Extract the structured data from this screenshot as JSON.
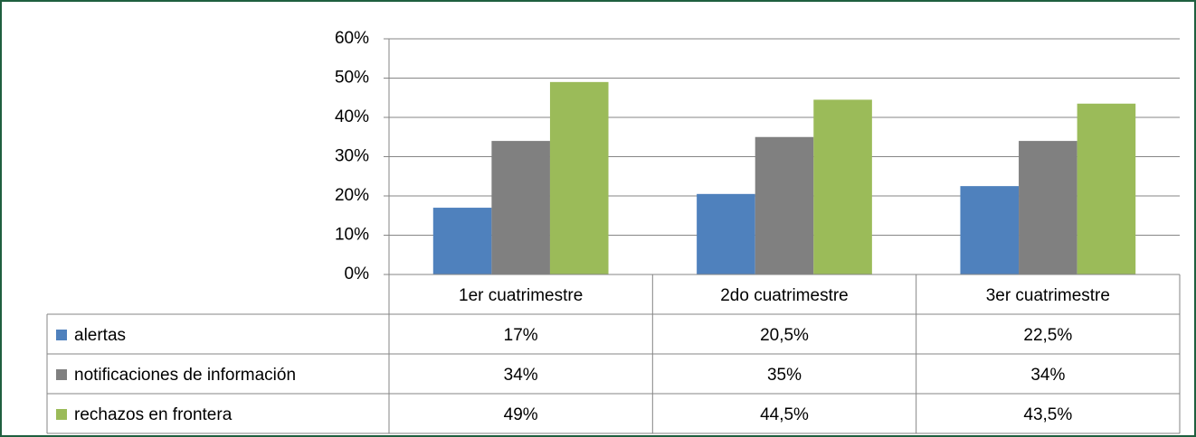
{
  "chart_data": {
    "type": "bar",
    "categories": [
      "1er cuatrimestre",
      "2do cuatrimestre",
      "3er cuatrimestre"
    ],
    "series": [
      {
        "name": "alertas",
        "color": "#4f81bd",
        "values": [
          17,
          20.5,
          22.5
        ],
        "value_labels": [
          "17%",
          "20,5%",
          "22,5%"
        ]
      },
      {
        "name": "notificaciones de información",
        "color": "#808080",
        "values": [
          34,
          35,
          34
        ],
        "value_labels": [
          "34%",
          "35%",
          "34%"
        ]
      },
      {
        "name": "rechazos en frontera",
        "color": "#9bbb59",
        "values": [
          49,
          44.5,
          43.5
        ],
        "value_labels": [
          "49%",
          "44,5%",
          "43,5%"
        ]
      }
    ],
    "ylim": [
      0,
      60
    ],
    "yticks": [
      {
        "value": 0,
        "label": "0%"
      },
      {
        "value": 10,
        "label": "10%"
      },
      {
        "value": 20,
        "label": "20%"
      },
      {
        "value": 30,
        "label": "30%"
      },
      {
        "value": 40,
        "label": "40%"
      },
      {
        "value": 50,
        "label": "50%"
      },
      {
        "value": 60,
        "label": "60%"
      }
    ],
    "grid": true,
    "legend": "table"
  }
}
